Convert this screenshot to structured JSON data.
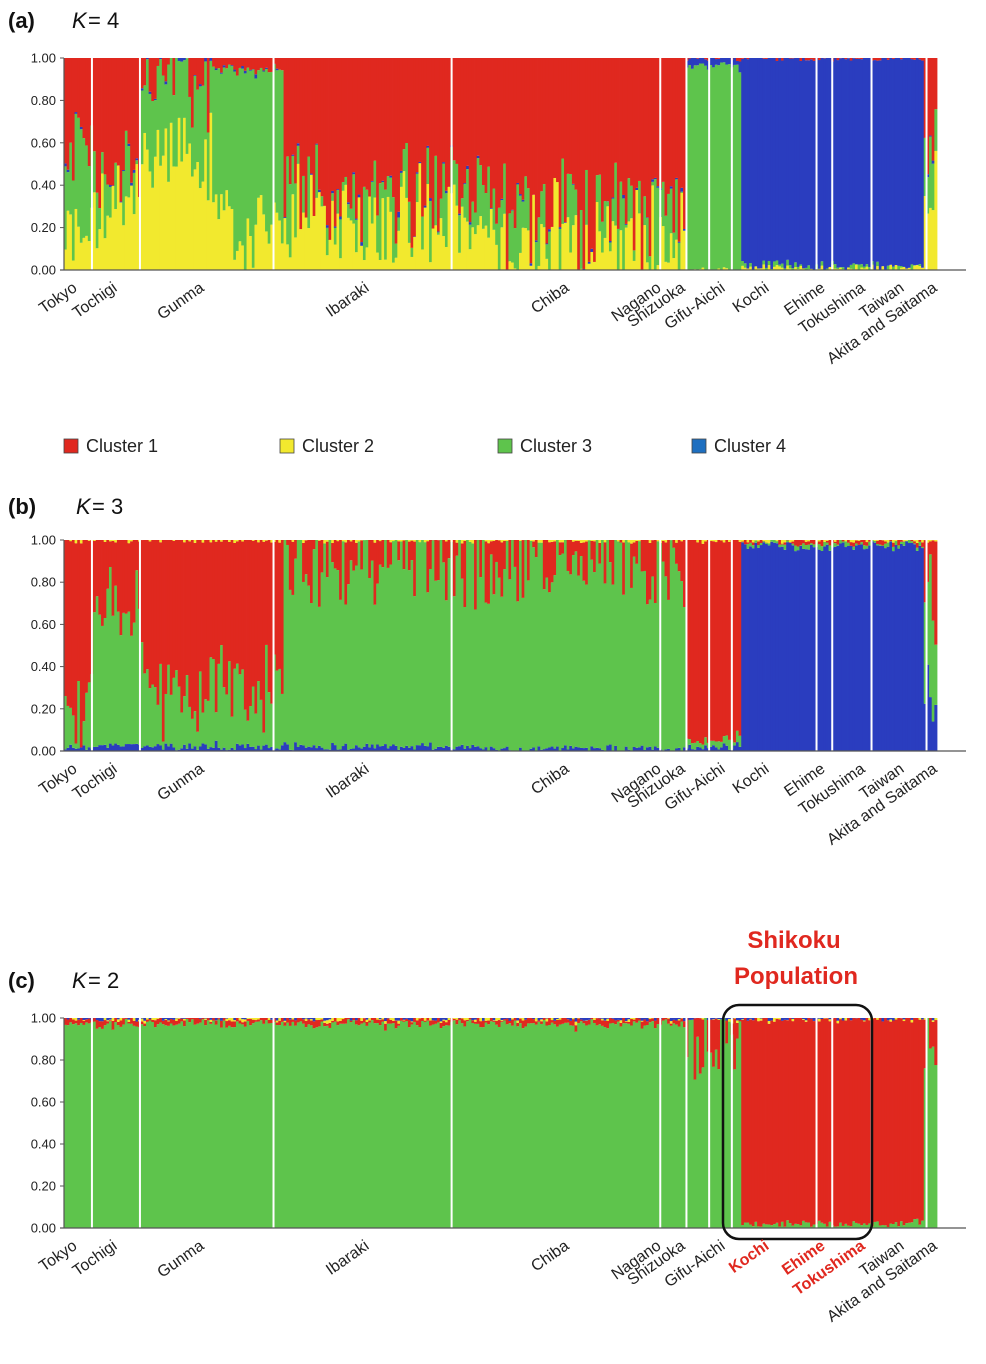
{
  "colors": {
    "cluster1": "#e0281f",
    "cluster2": "#f2e92e",
    "cluster3": "#5ec44c",
    "cluster4": "#2a3dbf",
    "highlight": "#e0281f",
    "blue_legend": "#1e6fc0"
  },
  "legend": [
    {
      "name": "Cluster 1",
      "color": "#e0281f"
    },
    {
      "name": "Cluster 2",
      "color": "#f2e92e"
    },
    {
      "name": "Cluster 3",
      "color": "#5ec44c"
    },
    {
      "name": "Cluster 4",
      "color": "#1e6fc0"
    }
  ],
  "chart_data": [
    {
      "type": "bar",
      "stacked": true,
      "panel": "(a)",
      "k_label": "K",
      "k_value": "= 4",
      "ylim": [
        0,
        1
      ],
      "yticks": [
        "1.00",
        "0.80",
        "0.60",
        "0.40",
        "0.20",
        "0.00"
      ],
      "populations": [
        {
          "name": "Tokyo",
          "start": 0,
          "end": 0.032
        },
        {
          "name": "Tochigi",
          "start": 0.032,
          "end": 0.087
        },
        {
          "name": "Gunma",
          "start": 0.087,
          "end": 0.252
        },
        {
          "name": "Ibaraki",
          "start": 0.252,
          "end": 0.465
        },
        {
          "name": "Chiba",
          "start": 0.465,
          "end": 0.713
        },
        {
          "name": "Nagano",
          "start": 0.713,
          "end": 0.713
        },
        {
          "name": "Shizuoka",
          "start": 0.713,
          "end": 0.75
        },
        {
          "name": "Gifu-Aichi",
          "start": 0.75,
          "end": 0.777
        },
        {
          "name": "Kochi",
          "start": 0.777,
          "end": 0.875
        },
        {
          "name": "Ehime",
          "start": 0.875,
          "end": 0.894
        },
        {
          "name": "Tokushima",
          "start": 0.894,
          "end": 0.986
        },
        {
          "name": "Taiwan",
          "start": 0.986,
          "end": 0.986
        },
        {
          "name": "Akita and Saitama",
          "start": 0.986,
          "end": 1.0
        }
      ],
      "segment_profile": [
        {
          "from": 0,
          "to": 0.032,
          "c1": 0.45,
          "c2": 0.2,
          "c3": 0.35,
          "c4": 0.0
        },
        {
          "from": 0.032,
          "to": 0.087,
          "c1": 0.55,
          "c2": 0.3,
          "c3": 0.15,
          "c4": 0.0
        },
        {
          "from": 0.087,
          "to": 0.17,
          "c1": 0.1,
          "c2": 0.55,
          "c3": 0.35,
          "c4": 0.0
        },
        {
          "from": 0.17,
          "to": 0.252,
          "c1": 0.05,
          "c2": 0.2,
          "c3": 0.75,
          "c4": 0.0
        },
        {
          "from": 0.252,
          "to": 0.465,
          "c1": 0.6,
          "c2": 0.28,
          "c3": 0.12,
          "c4": 0.0
        },
        {
          "from": 0.465,
          "to": 0.713,
          "c1": 0.7,
          "c2": 0.15,
          "c3": 0.15,
          "c4": 0.0
        },
        {
          "from": 0.713,
          "to": 0.777,
          "c1": 0.0,
          "c2": 0.0,
          "c3": 0.97,
          "c4": 0.03
        },
        {
          "from": 0.777,
          "to": 0.986,
          "c1": 0.0,
          "c2": 0.01,
          "c3": 0.01,
          "c4": 0.98
        },
        {
          "from": 0.986,
          "to": 1.0,
          "c1": 0.35,
          "c2": 0.35,
          "c3": 0.3,
          "c4": 0.0
        }
      ]
    },
    {
      "type": "bar",
      "stacked": true,
      "panel": "(b)",
      "k_label": "K",
      "k_value": "= 3",
      "ylim": [
        0,
        1
      ],
      "yticks": [
        "1.00",
        "0.80",
        "0.60",
        "0.40",
        "0.20",
        "0.00"
      ],
      "segment_profile": [
        {
          "from": 0,
          "to": 0.032,
          "c1": 0.8,
          "c2": 0.0,
          "c3": 0.18,
          "c4": 0.02
        },
        {
          "from": 0.032,
          "to": 0.087,
          "c1": 0.3,
          "c2": 0.0,
          "c3": 0.67,
          "c4": 0.03
        },
        {
          "from": 0.087,
          "to": 0.252,
          "c1": 0.7,
          "c2": 0.0,
          "c3": 0.28,
          "c4": 0.02
        },
        {
          "from": 0.252,
          "to": 0.465,
          "c1": 0.1,
          "c2": 0.0,
          "c3": 0.88,
          "c4": 0.02
        },
        {
          "from": 0.465,
          "to": 0.713,
          "c1": 0.1,
          "c2": 0.0,
          "c3": 0.89,
          "c4": 0.01
        },
        {
          "from": 0.713,
          "to": 0.777,
          "c1": 0.95,
          "c2": 0.0,
          "c3": 0.03,
          "c4": 0.02
        },
        {
          "from": 0.777,
          "to": 0.986,
          "c1": 0.01,
          "c2": 0.0,
          "c3": 0.01,
          "c4": 0.98
        },
        {
          "from": 0.986,
          "to": 1.0,
          "c1": 0.3,
          "c2": 0.0,
          "c3": 0.5,
          "c4": 0.2
        }
      ]
    },
    {
      "type": "bar",
      "stacked": true,
      "panel": "(c)",
      "k_label": "K",
      "k_value": "= 2",
      "ylim": [
        0,
        1
      ],
      "yticks": [
        "1.00",
        "0.80",
        "0.60",
        "0.40",
        "0.20",
        "0.00"
      ],
      "annotation": {
        "line1": "Shikoku",
        "line2": "Population"
      },
      "highlighted_populations": [
        "Kochi",
        "Ehime",
        "Tokushima"
      ],
      "segment_profile": [
        {
          "from": 0,
          "to": 0.713,
          "c1": 0.02,
          "c2": 0.0,
          "c3": 0.98,
          "c4": 0.0
        },
        {
          "from": 0.713,
          "to": 0.777,
          "c1": 0.08,
          "c2": 0.0,
          "c3": 0.92,
          "c4": 0.0
        },
        {
          "from": 0.777,
          "to": 0.986,
          "c1": 0.98,
          "c2": 0.0,
          "c3": 0.02,
          "c4": 0.0
        },
        {
          "from": 0.986,
          "to": 1.0,
          "c1": 0.1,
          "c2": 0.0,
          "c3": 0.9,
          "c4": 0.0
        }
      ]
    }
  ]
}
